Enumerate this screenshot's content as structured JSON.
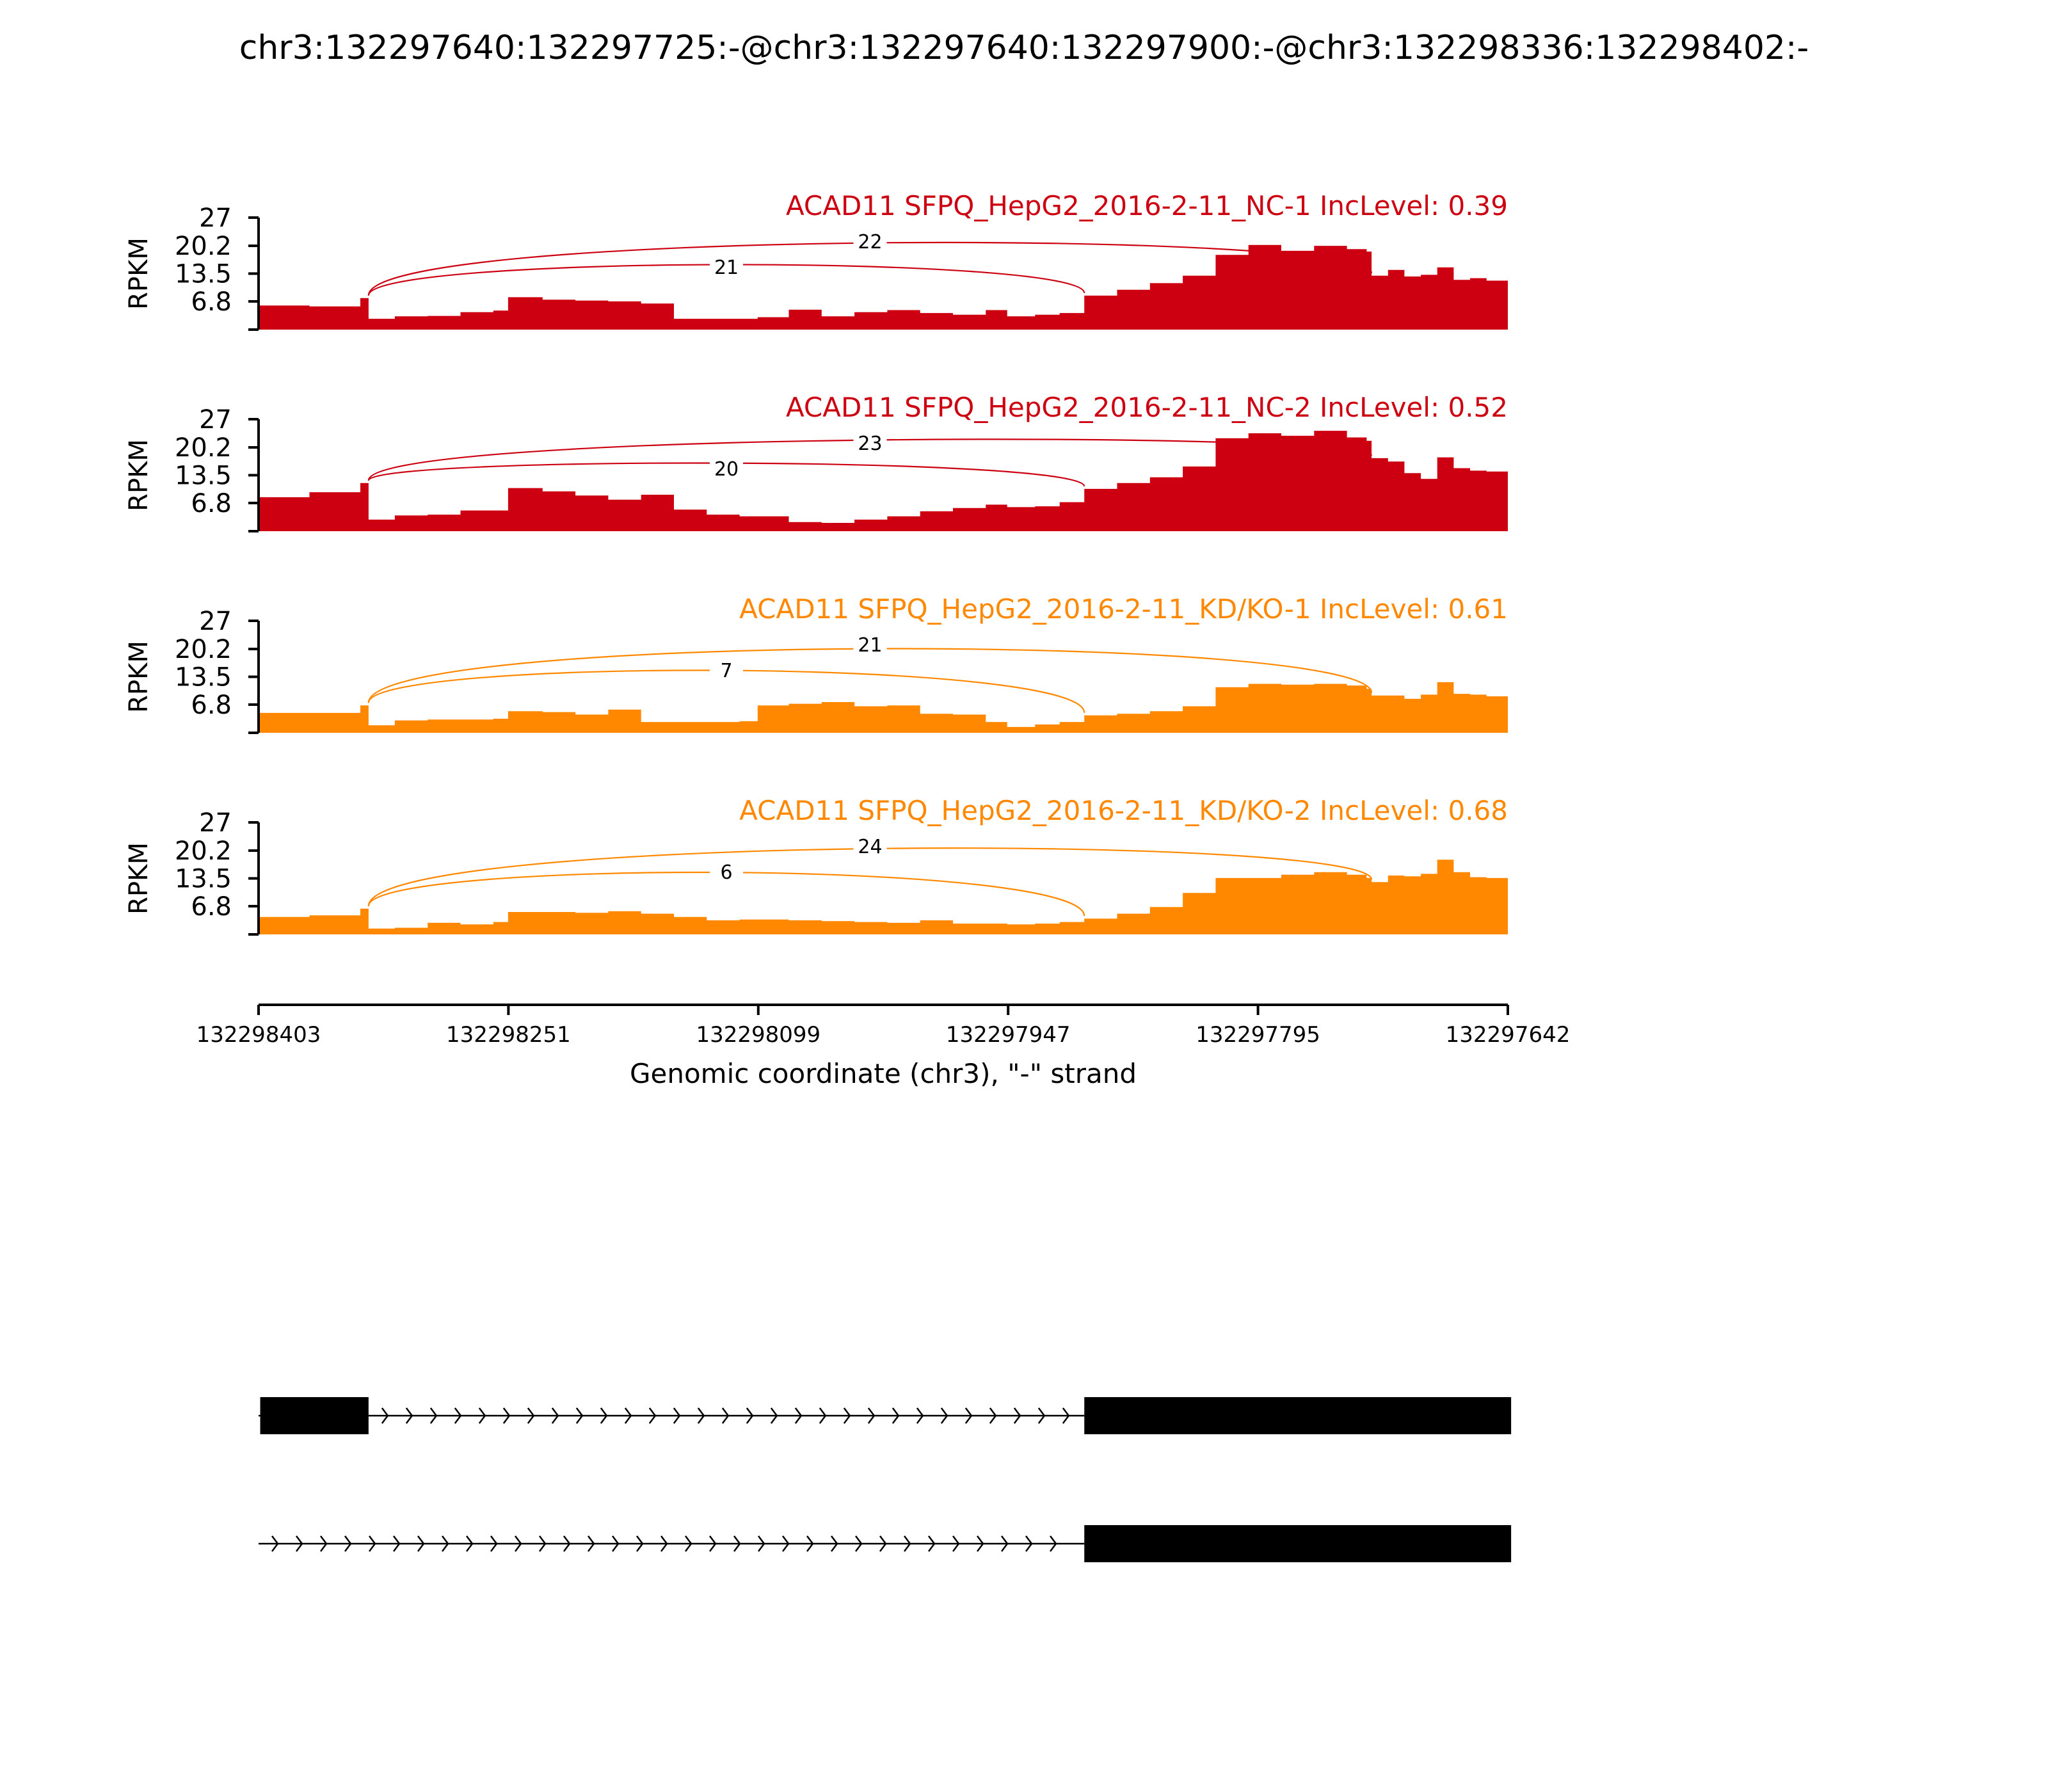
{
  "title": "chr3:132297640:132297725:-@chr3:132297640:132297900:-@chr3:132298336:132298402:-",
  "colors": {
    "nc": "#cc0011",
    "kd": "#ff8800",
    "axis": "#000000",
    "model": "#000000"
  },
  "chart_data": {
    "type": "area",
    "x_direction": "reversed",
    "xlim": [
      132298403,
      132297642
    ],
    "x_ticks": [
      "132298403",
      "132298251",
      "132298099",
      "132297947",
      "132297795",
      "132297642"
    ],
    "xlabel": "Genomic coordinate (chr3), \"-\" strand",
    "ylabel": "RPKM",
    "ylim": [
      0,
      27
    ],
    "y_ticks": [
      "27",
      "20.2",
      "13.5",
      "6.8"
    ],
    "y_tick_values": [
      27,
      20.2,
      13.5,
      6.8
    ],
    "x_samples": [
      132298403,
      132298372,
      132298341,
      132298336,
      132298320,
      132298300,
      132298280,
      132298260,
      132298251,
      132298230,
      132298210,
      132298190,
      132298170,
      132298150,
      132298130,
      132298110,
      132298099,
      132298080,
      132298060,
      132298040,
      132298020,
      132298000,
      132297980,
      132297960,
      132297947,
      132297930,
      132297915,
      132297900,
      132297880,
      132297860,
      132297840,
      132297820,
      132297800,
      132297780,
      132297760,
      132297740,
      132297728,
      132297725,
      132297715,
      132297705,
      132297695,
      132297685,
      132297675,
      132297665,
      132297655,
      132297642
    ],
    "series": [
      {
        "name": "ACAD11 SFPQ_HepG2_2016-2-11_NC-1",
        "label": "ACAD11 SFPQ_HepG2_2016-2-11_NC-1 IncLevel: 0.39",
        "inclevel": 0.39,
        "color": "#cc0011",
        "coverage": [
          5.8,
          5.6,
          7.6,
          2.6,
          3.2,
          3.3,
          4.2,
          4.6,
          7.8,
          7.2,
          7.0,
          6.8,
          6.3,
          2.6,
          2.6,
          2.6,
          3.0,
          4.8,
          3.2,
          4.2,
          4.7,
          4.0,
          3.6,
          4.7,
          3.2,
          3.6,
          4.0,
          8.2,
          9.6,
          11.2,
          13.0,
          18.0,
          20.4,
          19.0,
          20.2,
          19.4,
          18.8,
          13.0,
          14.4,
          12.8,
          13.2,
          15.0,
          12.0,
          12.4,
          11.8,
          11.4
        ],
        "junctions": [
          {
            "label": "22",
            "from": 132298336,
            "to": 132297725
          },
          {
            "label": "21",
            "from": 132298336,
            "to": 132297900
          }
        ]
      },
      {
        "name": "ACAD11 SFPQ_HepG2_2016-2-11_NC-2",
        "label": "ACAD11 SFPQ_HepG2_2016-2-11_NC-2 IncLevel: 0.52",
        "inclevel": 0.52,
        "color": "#cc0011",
        "coverage": [
          8.2,
          9.4,
          11.6,
          2.8,
          3.8,
          4.0,
          5.0,
          5.0,
          10.4,
          9.6,
          8.6,
          7.6,
          8.8,
          5.2,
          4.0,
          3.6,
          3.6,
          2.2,
          2.0,
          2.8,
          3.6,
          4.8,
          5.6,
          6.4,
          5.8,
          6.0,
          7.0,
          10.2,
          11.6,
          13.0,
          15.6,
          22.4,
          23.6,
          23.0,
          24.2,
          22.6,
          21.8,
          17.6,
          16.8,
          14.0,
          12.6,
          17.8,
          15.2,
          14.6,
          14.4,
          13.8
        ],
        "junctions": [
          {
            "label": "23",
            "from": 132298336,
            "to": 132297725
          },
          {
            "label": "20",
            "from": 132298336,
            "to": 132297900
          }
        ]
      },
      {
        "name": "ACAD11 SFPQ_HepG2_2016-2-11_KD/KO-1",
        "label": "ACAD11 SFPQ_HepG2_2016-2-11_KD/KO-1 IncLevel: 0.61",
        "inclevel": 0.61,
        "color": "#ff8800",
        "coverage": [
          4.8,
          4.8,
          6.6,
          1.8,
          3.0,
          3.2,
          3.2,
          3.4,
          5.2,
          5.0,
          4.4,
          5.6,
          2.6,
          2.6,
          2.6,
          2.8,
          6.6,
          7.0,
          7.4,
          6.4,
          6.6,
          4.6,
          4.4,
          2.6,
          1.4,
          2.0,
          2.6,
          4.2,
          4.6,
          5.2,
          6.4,
          11.0,
          11.8,
          11.6,
          11.8,
          11.4,
          10.6,
          9.0,
          9.0,
          8.2,
          9.2,
          12.2,
          9.4,
          9.2,
          8.8,
          8.6
        ],
        "junctions": [
          {
            "label": "21",
            "from": 132298336,
            "to": 132297725
          },
          {
            "label": "7",
            "from": 132298336,
            "to": 132297900
          }
        ]
      },
      {
        "name": "ACAD11 SFPQ_HepG2_2016-2-11_KD/KO-2",
        "label": "ACAD11 SFPQ_HepG2_2016-2-11_KD/KO-2 IncLevel: 0.68",
        "inclevel": 0.68,
        "color": "#ff8800",
        "coverage": [
          4.2,
          4.6,
          6.2,
          1.4,
          1.6,
          2.8,
          2.4,
          3.0,
          5.4,
          5.4,
          5.2,
          5.6,
          5.0,
          4.2,
          3.4,
          3.6,
          3.6,
          3.4,
          3.2,
          3.0,
          2.8,
          3.4,
          2.6,
          2.6,
          2.4,
          2.6,
          3.0,
          3.8,
          5.0,
          6.6,
          10.0,
          13.6,
          13.6,
          14.4,
          15.0,
          14.4,
          13.6,
          12.6,
          14.2,
          14.0,
          14.6,
          18.0,
          15.0,
          13.8,
          13.6,
          13.4
        ],
        "junctions": [
          {
            "label": "24",
            "from": 132298336,
            "to": 132297725
          },
          {
            "label": "6",
            "from": 132298336,
            "to": 132297900
          }
        ]
      }
    ],
    "transcripts": [
      {
        "exons": [
          [
            132298402,
            132298336
          ],
          [
            132297900,
            132297640
          ]
        ]
      },
      {
        "exons": [
          [
            132297900,
            132297640
          ]
        ]
      }
    ]
  }
}
